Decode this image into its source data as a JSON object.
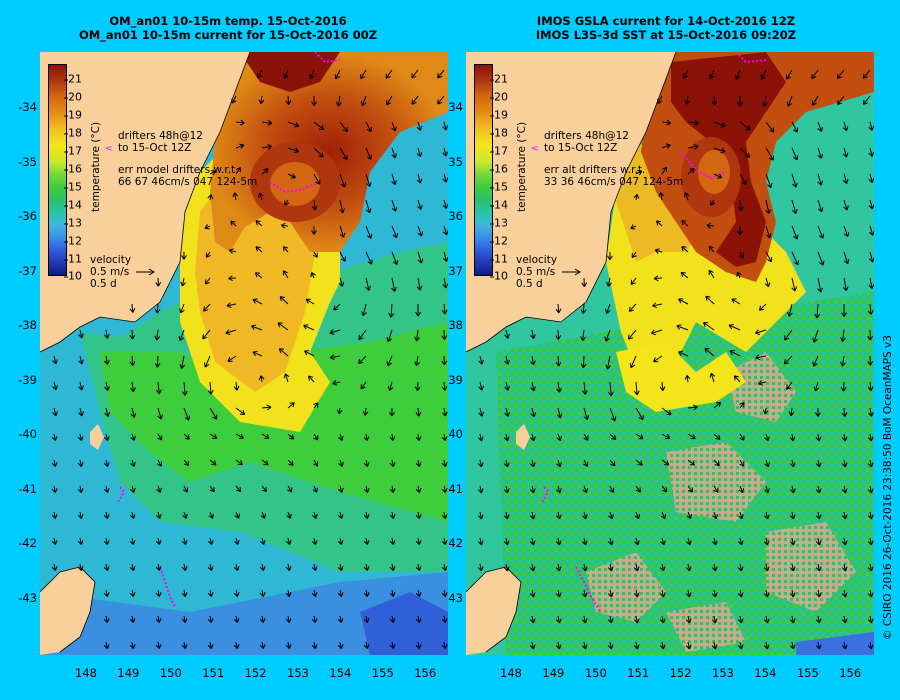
{
  "left": {
    "title": [
      "OM_an01 10-15m temp. 15-Oct-2016",
      "OM_an01 10-15m current for 15-Oct-2016 00Z"
    ],
    "drifters_note": [
      "drifters 48h@12",
      "to 15-Oct 12Z",
      "err model drifters w.r.t.",
      "66 67 46cm/s 047 124-5m"
    ]
  },
  "right": {
    "title": [
      "IMOS GSLA current for 14-Oct-2016 12Z",
      "IMOS L3S-3d SST at 15-Oct-2016 09:20Z"
    ],
    "drifters_note": [
      "drifters 48h@12",
      "to 15-Oct 12Z",
      "err alt drifters w.r.t.",
      "33 36 46cm/s 047 124-5m"
    ]
  },
  "latitude_labels": [
    "-34",
    "-35",
    "-36",
    "-37",
    "-38",
    "-39",
    "-40",
    "-41",
    "-42",
    "-43"
  ],
  "longitude_labels": [
    "148",
    "149",
    "150",
    "151",
    "152",
    "153",
    "154",
    "155",
    "156"
  ],
  "colorbar": {
    "label": "temperature (°C)",
    "ticks": [
      "21",
      "20",
      "19",
      "18",
      "17",
      "16",
      "15",
      "14",
      "13",
      "12",
      "11",
      "10"
    ]
  },
  "velocity_legend": [
    "velocity",
    "0.5 m/s",
    "0.5 d"
  ],
  "credit": "© CSIRO 2016   26-Oct-2016 23:38:50 BoM OceanMAPS v3",
  "colors": {
    "background": "#00ccff",
    "land": "#f9cf9c",
    "drifters": "#ff00ff",
    "cloud_mask": "#c8ab8c"
  }
}
